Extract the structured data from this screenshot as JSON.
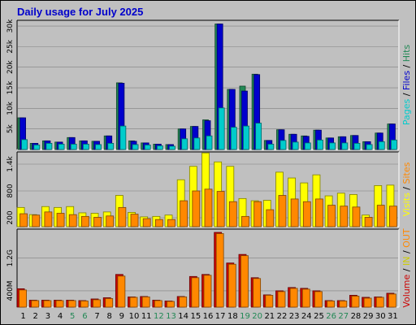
{
  "chart_data": [
    {
      "type": "bar",
      "title": "Daily usage for July 2025",
      "panel": "hits-files-pages",
      "categories": [
        "1",
        "2",
        "3",
        "4",
        "5",
        "6",
        "7",
        "8",
        "9",
        "10",
        "11",
        "12",
        "13",
        "14",
        "15",
        "16",
        "17",
        "18",
        "19",
        "20",
        "21",
        "22",
        "23",
        "24",
        "25",
        "26",
        "27",
        "28",
        "29",
        "30",
        "31"
      ],
      "y_ticks": [
        "5k",
        "10k",
        "15k",
        "20k",
        "25k",
        "30k"
      ],
      "ylim": [
        0,
        30600
      ],
      "side_labels": [
        {
          "text": "Pages",
          "color": "#00cccc"
        },
        {
          "text": " / ",
          "color": "#000000"
        },
        {
          "text": "Files",
          "color": "#0000cc"
        },
        {
          "text": " / ",
          "color": "#000000"
        },
        {
          "text": "Hits",
          "color": "#228855"
        }
      ],
      "series": [
        {
          "name": "Hits",
          "color": "#228855",
          "values": [
            7700,
            1500,
            2100,
            1800,
            2900,
            2100,
            2000,
            3300,
            16200,
            2100,
            1600,
            1300,
            1200,
            5000,
            5600,
            7200,
            30500,
            14600,
            15400,
            18300,
            2200,
            4800,
            3700,
            3300,
            4700,
            2800,
            3100,
            3400,
            1900,
            4000,
            6200
          ]
        },
        {
          "name": "Files",
          "color": "#0000cc",
          "values": [
            7700,
            1500,
            2100,
            1800,
            2900,
            2100,
            2000,
            3300,
            16100,
            2000,
            1600,
            1300,
            1200,
            5000,
            5600,
            7000,
            30500,
            14600,
            14200,
            18200,
            2200,
            4800,
            3700,
            3200,
            4700,
            2800,
            3100,
            3400,
            1900,
            4000,
            6200
          ]
        },
        {
          "name": "Pages",
          "color": "#00cccc",
          "values": [
            2400,
            1100,
            1500,
            1300,
            1300,
            1300,
            1200,
            1500,
            5700,
            1200,
            1100,
            900,
            800,
            2600,
            2800,
            3300,
            10100,
            5400,
            5700,
            6400,
            1300,
            2200,
            1800,
            1600,
            2300,
            1600,
            1600,
            1500,
            1200,
            1900,
            2300
          ]
        }
      ]
    },
    {
      "type": "bar",
      "panel": "visits-sites",
      "categories": [
        "1",
        "2",
        "3",
        "4",
        "5",
        "6",
        "7",
        "8",
        "9",
        "10",
        "11",
        "12",
        "13",
        "14",
        "15",
        "16",
        "17",
        "18",
        "19",
        "20",
        "21",
        "22",
        "23",
        "24",
        "25",
        "26",
        "27",
        "28",
        "29",
        "30",
        "31"
      ],
      "y_ticks": [
        "200",
        "800",
        "1.4k"
      ],
      "ylim": [
        0,
        1600
      ],
      "side_labels": [
        {
          "text": "Visits",
          "color": "#ffff00"
        },
        {
          "text": " / ",
          "color": "#000000"
        },
        {
          "text": "Sites",
          "color": "#ff8800"
        }
      ],
      "series": [
        {
          "name": "Visits",
          "color": "#ffff00",
          "values": [
            430,
            270,
            450,
            430,
            450,
            310,
            300,
            330,
            700,
            320,
            220,
            230,
            260,
            1050,
            1350,
            1650,
            1450,
            1350,
            630,
            580,
            590,
            1220,
            1090,
            980,
            1160,
            690,
            750,
            720,
            260,
            920,
            930
          ]
        },
        {
          "name": "Sites",
          "color": "#ff8800",
          "values": [
            290,
            260,
            330,
            300,
            270,
            230,
            210,
            240,
            430,
            280,
            180,
            160,
            160,
            580,
            800,
            840,
            790,
            560,
            230,
            560,
            380,
            700,
            620,
            560,
            620,
            480,
            460,
            440,
            210,
            480,
            460
          ]
        }
      ]
    },
    {
      "type": "bar",
      "panel": "volume",
      "categories": [
        "1",
        "2",
        "3",
        "4",
        "5",
        "6",
        "7",
        "8",
        "9",
        "10",
        "11",
        "12",
        "13",
        "14",
        "15",
        "16",
        "17",
        "18",
        "19",
        "20",
        "21",
        "22",
        "23",
        "24",
        "25",
        "26",
        "27",
        "28",
        "29",
        "30",
        "31"
      ],
      "y_ticks": [
        "400M",
        "1.2G"
      ],
      "ylim": [
        0,
        1830
      ],
      "side_labels": [
        {
          "text": "Volume",
          "color": "#cc0000"
        },
        {
          "text": " / ",
          "color": "#000000"
        },
        {
          "text": "IN",
          "color": "#cccc00"
        },
        {
          "text": " / ",
          "color": "#000000"
        },
        {
          "text": "OUT",
          "color": "#ff8800"
        }
      ],
      "series": [
        {
          "name": "Volume",
          "color": "#cc0000",
          "values": [
            450,
            170,
            170,
            170,
            170,
            160,
            200,
            230,
            800,
            250,
            260,
            170,
            150,
            260,
            750,
            800,
            1830,
            1080,
            1290,
            720,
            300,
            400,
            480,
            460,
            400,
            160,
            160,
            290,
            240,
            250,
            340
          ]
        },
        {
          "name": "OUT",
          "color": "#ff8800",
          "values": [
            420,
            160,
            160,
            160,
            160,
            150,
            180,
            210,
            760,
            240,
            250,
            160,
            140,
            250,
            720,
            780,
            1800,
            1050,
            1260,
            700,
            290,
            380,
            460,
            440,
            380,
            150,
            150,
            270,
            220,
            240,
            320
          ]
        }
      ]
    }
  ],
  "x_label_colors": [
    "#000000",
    "#000000",
    "#000000",
    "#000000",
    "#228855",
    "#228855",
    "#000000",
    "#000000",
    "#000000",
    "#000000",
    "#000000",
    "#228855",
    "#228855",
    "#000000",
    "#000000",
    "#000000",
    "#000000",
    "#000000",
    "#228855",
    "#228855",
    "#000000",
    "#000000",
    "#000000",
    "#000000",
    "#000000",
    "#228855",
    "#228855",
    "#000000",
    "#000000",
    "#000000",
    "#000000"
  ]
}
